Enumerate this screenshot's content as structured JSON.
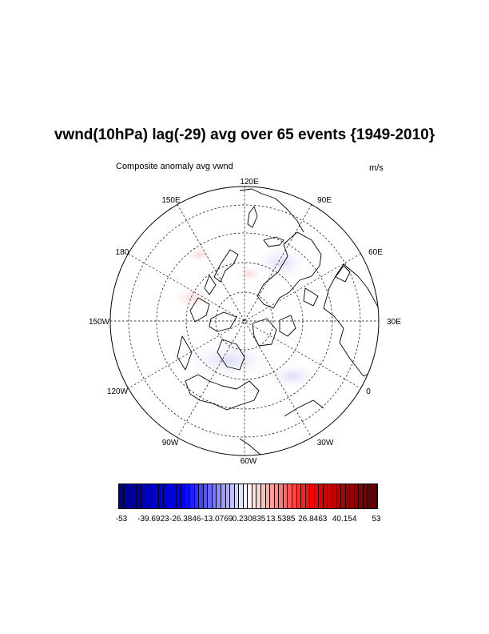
{
  "title": "vwnd(10hPa) lag(-29) avg over 65 events {1949-2010}",
  "left_string": "Composite anomaly avg vwnd",
  "right_string": "m/s",
  "map": {
    "projection": "polar stereographic (north)",
    "longitude_labels": [
      "120E",
      "90E",
      "60E",
      "30E",
      "0",
      "30W",
      "60W",
      "90W",
      "120W",
      "150W",
      "180",
      "150E"
    ]
  },
  "colorbar": {
    "labels": [
      "-53",
      "-39.6923",
      "-26.3846",
      "-13.0769",
      "0.230835",
      "13.5385",
      "26.8463",
      "40.154",
      "53"
    ],
    "min": -53,
    "max": 53,
    "colors": {
      "low": "#00008b",
      "mid_low": "#0000ff",
      "center": "#ffffff",
      "mid_high": "#ff0000",
      "high": "#640000"
    }
  }
}
